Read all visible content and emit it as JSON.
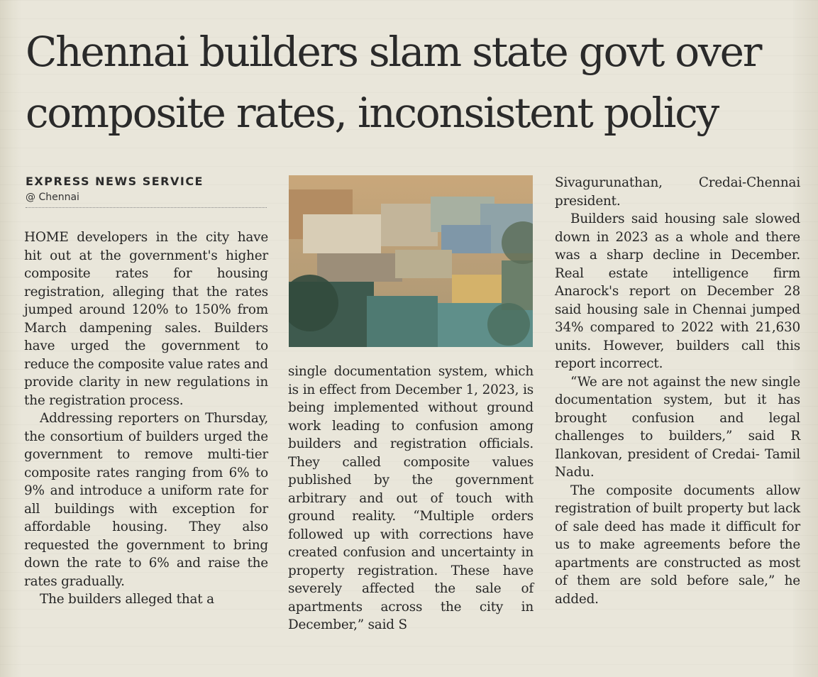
{
  "article": {
    "headline_line1": "Chennai builders slam state govt over",
    "headline_line2": "composite rates, inconsistent policy",
    "byline": {
      "agency": "EXPRESS NEWS SERVICE",
      "location": "@ Chennai"
    },
    "columns": [
      {
        "paragraphs": [
          "HOME developers in the city have hit out at the government's higher composite rates for housing registration, alleging that the rates jumped around 120% to 150% from March dampening sales. Builders have urged the government to reduce the composite value rates and provide clarity in new regulations in the registration process.",
          "Addressing reporters on Thursday, the consortium of builders urged the government to remove multi-tier composite rates ranging from 6% to 9% and introduce a uniform rate for all buildings with exception for affordable housing. They also requested the government to bring down the rate to 6% and raise the rates gradually.",
          "The builders alleged that a"
        ]
      },
      {
        "paragraphs": [
          "single documentation system, which is in effect from December 1, 2023, is being implemented without ground work leading to confusion among builders and registration officials. They called composite values published by the government arbitrary and out of touch with ground reality. “Multiple orders followed up with corrections have created confusion and uncertainty in property registration. These have severely affected the sale of apartments across the city in December,” said S"
        ]
      },
      {
        "paragraphs": [
          "Sivagurunathan, Credai-Chennai president.",
          "Builders said housing sale slowed down in 2023 as a whole and there was a sharp decline in December. Real estate intelligence firm Anarock's report on December 28 said housing sale in Chennai jumped 34% compared to 2022 with 21,630 units. However, builders call this report incorrect.",
          "“We are not against the new single documentation system, but it has brought confusion and legal challenges to builders,” said R Ilankovan, president of Credai- Tamil Nadu.",
          "The composite documents allow registration of built property but lack of sale deed has made it difficult for us to make agreements before the apartments are constructed as most of them are sold before sale,” he added."
        ]
      }
    ]
  },
  "photo": {
    "subject": "aerial view of city buildings"
  }
}
